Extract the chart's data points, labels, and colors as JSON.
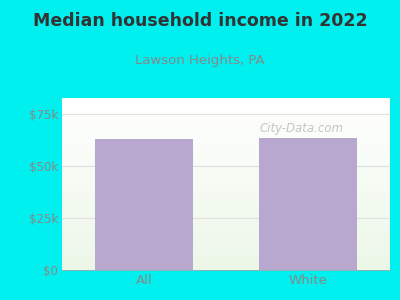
{
  "title": "Median household income in 2022",
  "subtitle": "Lawson Heights, PA",
  "categories": [
    "All",
    "White"
  ],
  "values": [
    63000,
    63500
  ],
  "bar_color": "#b8a8d0",
  "background_color": "#00efef",
  "plot_bg_top_left": "#e8f0e0",
  "plot_bg_bottom_left": "#d0e8c8",
  "plot_bg_top_right": "#f8f8f8",
  "plot_bg_bottom_right": "#e8eee8",
  "title_color": "#333333",
  "subtitle_color": "#888888",
  "tick_color": "#888888",
  "ylim": [
    0,
    83000
  ],
  "yticks": [
    0,
    25000,
    50000,
    75000
  ],
  "ytick_labels": [
    "$0",
    "$25k",
    "$50k",
    "$75k"
  ],
  "watermark": "City-Data.com",
  "watermark_color": "#bbbbbb",
  "grid_color": "#e0e0e0"
}
